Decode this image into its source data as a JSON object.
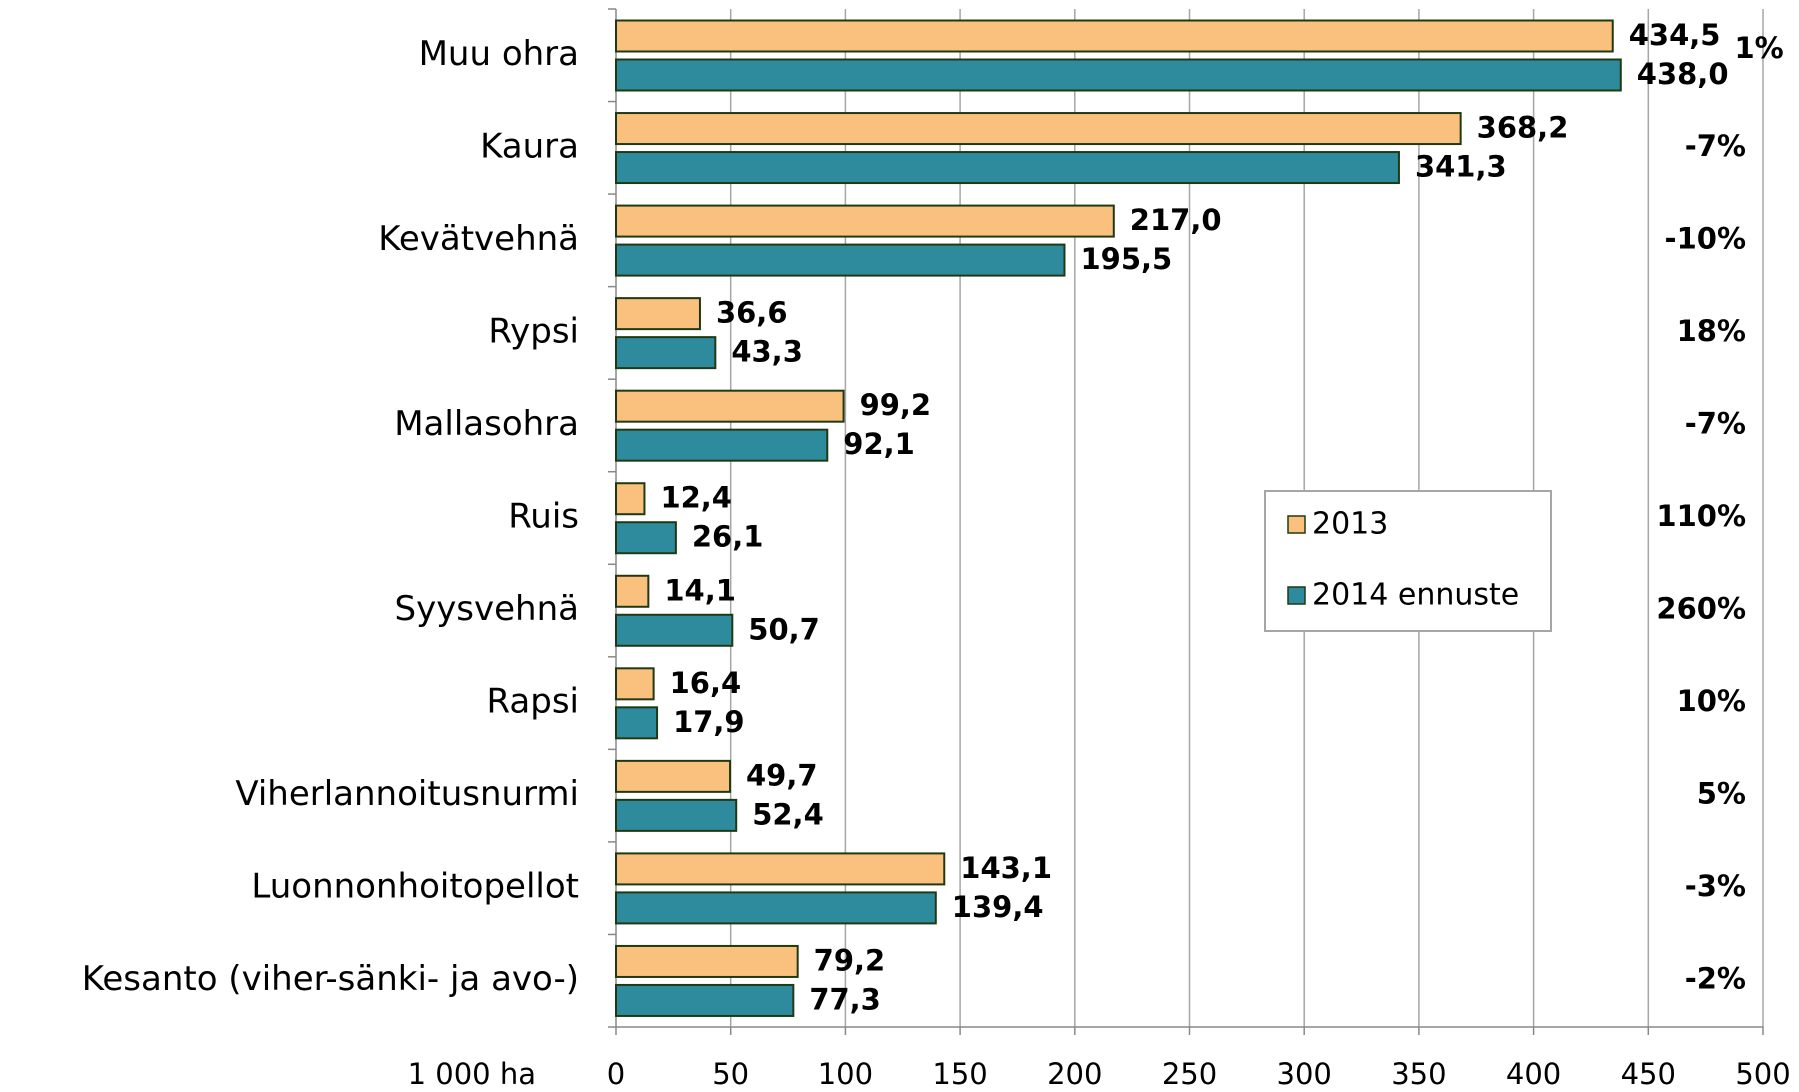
{
  "chart_data": {
    "type": "hbar",
    "categories": [
      "Muu ohra",
      "Kaura",
      "Kevätvehnä",
      "Rypsi",
      "Mallasohra",
      "Ruis",
      "Syysvehnä",
      "Rapsi",
      "Viherlannoitusnurmi",
      "Luonnonhoitopellot",
      "Kesanto (viher-sänki- ja avo-)"
    ],
    "series": [
      {
        "name": "2013",
        "color": "#fac07d",
        "values": [
          434.5,
          368.2,
          217.0,
          36.6,
          99.2,
          12.4,
          14.1,
          16.4,
          49.7,
          143.1,
          79.2
        ],
        "value_labels": [
          "434,5",
          "368,2",
          "217,0",
          "36,6",
          "99,2",
          "12,4",
          "14,1",
          "16,4",
          "49,7",
          "143,1",
          "79,2"
        ]
      },
      {
        "name": "2014 ennuste",
        "color": "#2e8b9e",
        "values": [
          438.0,
          341.3,
          195.5,
          43.3,
          92.1,
          26.1,
          50.7,
          17.9,
          52.4,
          139.4,
          77.3
        ],
        "value_labels": [
          "438,0",
          "341,3",
          "195,5",
          "43,3",
          "92,1",
          "26,1",
          "50,7",
          "17,9",
          "52,4",
          "139,4",
          "77,3"
        ]
      }
    ],
    "annotations": [
      {
        "label": "1%",
        "color": "#1a7a1a"
      },
      {
        "label": "-7%",
        "color": "#c00000"
      },
      {
        "label": "-10%",
        "color": "#c00000"
      },
      {
        "label": "18%",
        "color": "#1a7a1a"
      },
      {
        "label": "-7%",
        "color": "#c00000"
      },
      {
        "label": "110%",
        "color": "#1a7a1a"
      },
      {
        "label": "260%",
        "color": "#1a7a1a"
      },
      {
        "label": "10%",
        "color": "#1a7a1a"
      },
      {
        "label": "5%",
        "color": "#1a7a1a"
      },
      {
        "label": "-3%",
        "color": "#c00000"
      },
      {
        "label": "-2%",
        "color": "#c00000"
      }
    ],
    "xlabel": "1 000 ha",
    "xlim": [
      0,
      500
    ],
    "xticks": [
      0,
      50,
      100,
      150,
      200,
      250,
      300,
      350,
      400,
      450,
      500
    ],
    "grid": true
  }
}
